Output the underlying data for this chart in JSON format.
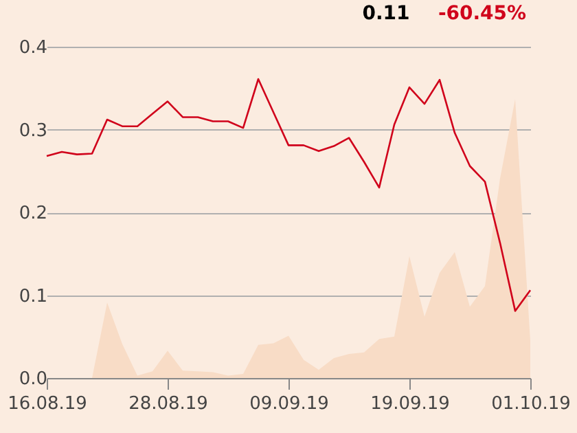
{
  "chart_data": {
    "type": "line",
    "categories": [
      "16.08.19",
      null,
      null,
      null,
      null,
      null,
      null,
      null,
      "28.08.19",
      null,
      null,
      null,
      null,
      null,
      null,
      null,
      "09.09.19",
      null,
      null,
      null,
      null,
      null,
      null,
      null,
      "19.09.19",
      null,
      null,
      null,
      null,
      null,
      null,
      null,
      "01.10.19"
    ],
    "series": [
      {
        "type": "area",
        "color": "#f8dcc6",
        "values": [
          0,
          0,
          0,
          0,
          0.091,
          0.041,
          0.003,
          0.008,
          0.033,
          0.009,
          0.008,
          0.007,
          0.003,
          0.005,
          0.04,
          0.042,
          0.051,
          0.022,
          0.01,
          0.024,
          0.029,
          0.031,
          0.047,
          0.05,
          0.147,
          0.074,
          0.127,
          0.152,
          0.086,
          0.111,
          0.241,
          0.337,
          0.045
        ]
      },
      {
        "type": "line",
        "color": "#d0021b",
        "values": [
          0.268,
          0.273,
          0.27,
          0.271,
          0.312,
          0.304,
          0.304,
          0.319,
          0.334,
          0.315,
          0.315,
          0.31,
          0.31,
          0.302,
          0.361,
          0.321,
          0.281,
          0.281,
          0.274,
          0.28,
          0.29,
          0.261,
          0.23,
          0.306,
          0.351,
          0.331,
          0.36,
          0.296,
          0.256,
          0.237,
          0.163,
          0.081,
          0.106
        ]
      }
    ],
    "ylim": [
      0,
      0.4
    ],
    "yticks": [
      {
        "value": 0,
        "label": "0.0"
      },
      0.1,
      0.2,
      0.3,
      0.4
    ],
    "grid": "y",
    "annotations": [
      "0.11",
      "-60.45%"
    ]
  }
}
